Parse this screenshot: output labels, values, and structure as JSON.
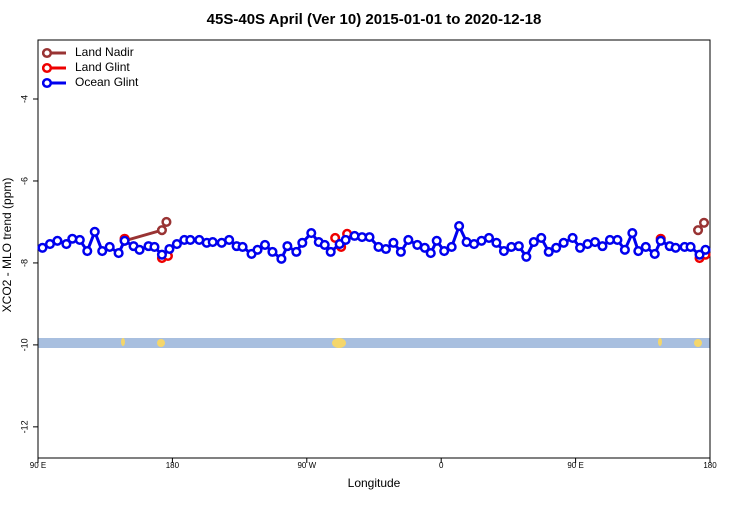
{
  "chart_data": {
    "type": "line",
    "title": "45S-40S April (Ver 10)   2015-01-01 to 2020-12-18",
    "x_label": "Longitude",
    "y_label": "XCO2 - MLO trend (ppm)",
    "xlim": [
      90,
      540
    ],
    "ylim": [
      -12.76,
      -2.56
    ],
    "xticks": [
      {
        "value": 90,
        "label": "90 E"
      },
      180,
      {
        "value": 270,
        "label": "90 W"
      },
      {
        "value": 360,
        "label": "0"
      },
      {
        "value": 450,
        "label": "90 E"
      },
      {
        "value": 540,
        "label": "180"
      }
    ],
    "yticks": [
      -4,
      -6,
      -8,
      -10,
      -12
    ],
    "legend": "top-left",
    "grid": false,
    "series": [
      {
        "name": "Land Nadir",
        "color": "#993333",
        "x": [
          148,
          173,
          176,
          null,
          532,
          536
        ],
        "values": [
          -7.46,
          -7.2,
          -7.0,
          null,
          -7.2,
          -7.02
        ]
      },
      {
        "name": "Land Glint",
        "color": "#ee0000",
        "x": [
          148,
          null,
          173,
          177,
          null,
          289,
          293,
          297,
          null,
          507,
          null,
          533,
          537
        ],
        "values": [
          -7.41,
          null,
          -7.88,
          -7.83,
          null,
          -7.39,
          -7.61,
          -7.29,
          null,
          -7.41,
          null,
          -7.88,
          -7.8
        ]
      },
      {
        "name": "Ocean Glint",
        "color": "#0000ee",
        "x": [
          93,
          98,
          103,
          109,
          113,
          118,
          123,
          128,
          133,
          138,
          144,
          148,
          154,
          158,
          164,
          168,
          173,
          178,
          183,
          188,
          192,
          198,
          203,
          207,
          213,
          218,
          223,
          227,
          233,
          237,
          242,
          247,
          253,
          257,
          263,
          267,
          273,
          278,
          282,
          286,
          292,
          296,
          302,
          307,
          312,
          318,
          323,
          328,
          333,
          338,
          344,
          349,
          353,
          357,
          362,
          367,
          372,
          377,
          382,
          387,
          392,
          397,
          402,
          407,
          412,
          417,
          422,
          427,
          432,
          437,
          442,
          448,
          453,
          458,
          463,
          468,
          473,
          478,
          483,
          488,
          492,
          497,
          503,
          507,
          513,
          517,
          523,
          527,
          533,
          537
        ],
        "values": [
          -7.63,
          -7.54,
          -7.46,
          -7.54,
          -7.41,
          -7.44,
          -7.71,
          -7.24,
          -7.71,
          -7.61,
          -7.76,
          -7.46,
          -7.59,
          -7.68,
          -7.59,
          -7.61,
          -7.8,
          -7.66,
          -7.54,
          -7.44,
          -7.44,
          -7.44,
          -7.51,
          -7.49,
          -7.51,
          -7.44,
          -7.59,
          -7.61,
          -7.78,
          -7.68,
          -7.56,
          -7.73,
          -7.9,
          -7.59,
          -7.73,
          -7.51,
          -7.27,
          -7.49,
          -7.56,
          -7.73,
          -7.54,
          -7.44,
          -7.34,
          -7.37,
          -7.37,
          -7.61,
          -7.66,
          -7.51,
          -7.73,
          -7.44,
          -7.56,
          -7.63,
          -7.76,
          -7.46,
          -7.71,
          -7.61,
          -7.1,
          -7.49,
          -7.54,
          -7.46,
          -7.39,
          -7.51,
          -7.71,
          -7.61,
          -7.59,
          -7.85,
          -7.49,
          -7.39,
          -7.73,
          -7.63,
          -7.51,
          -7.39,
          -7.63,
          -7.54,
          -7.49,
          -7.59,
          -7.44,
          -7.44,
          -7.68,
          -7.27,
          -7.71,
          -7.61,
          -7.78,
          -7.46,
          -7.59,
          -7.63,
          -7.61,
          -7.61,
          -7.8,
          -7.68
        ]
      }
    ]
  }
}
